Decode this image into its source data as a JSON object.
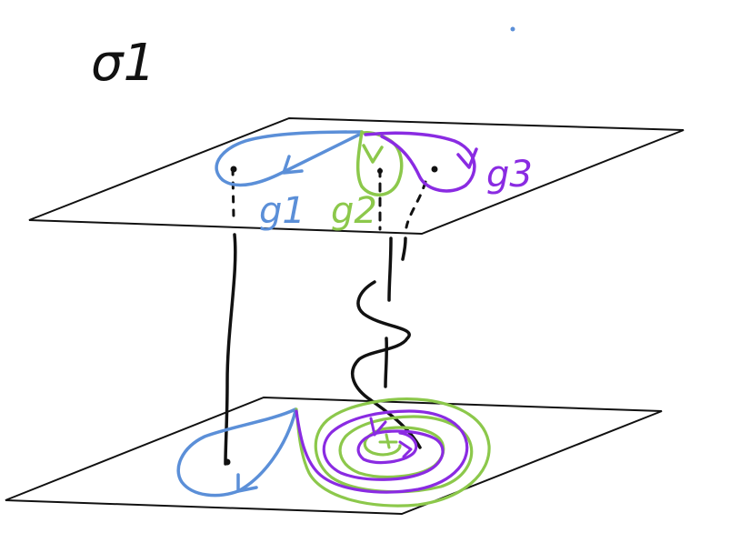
{
  "title": "σ1",
  "labels": {
    "g1": "g1",
    "g2": "g2",
    "g3": "g3"
  },
  "colors": {
    "ink": "#111111",
    "g1": "#5b8fd8",
    "g2": "#8cc84b",
    "g3": "#8a2be2"
  }
}
